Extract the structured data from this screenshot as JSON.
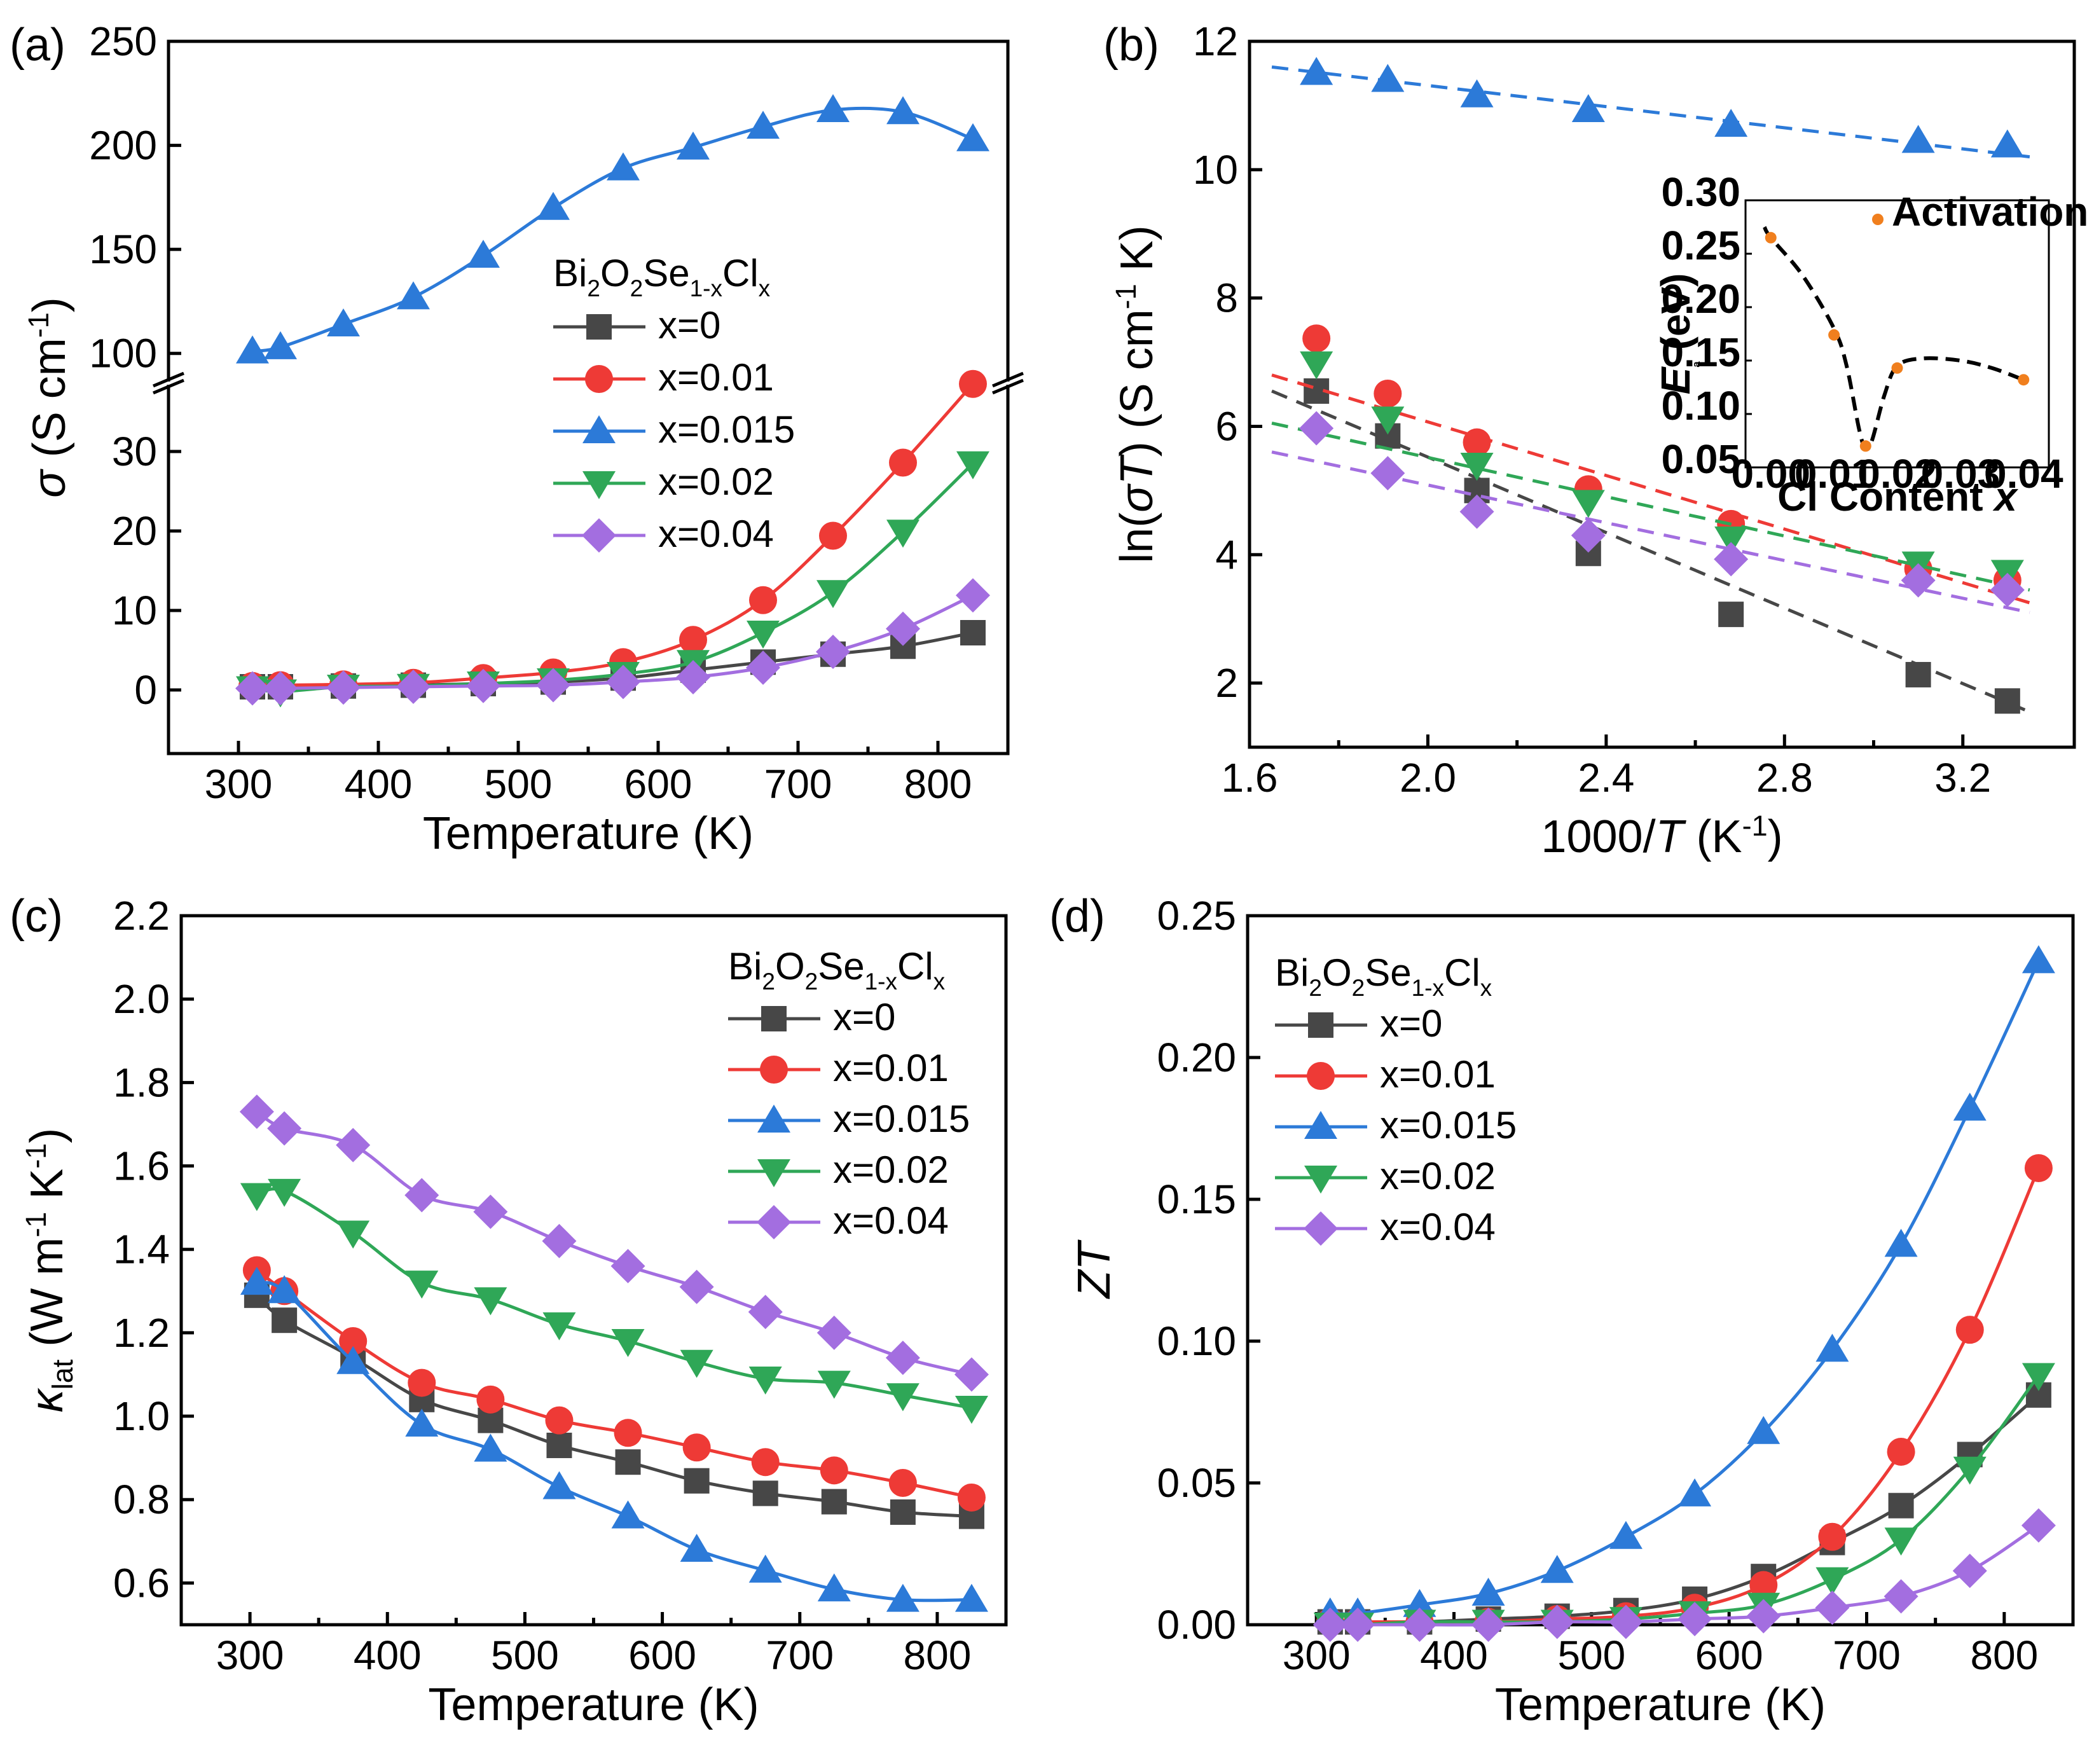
{
  "figure": {
    "series_names": [
      "x=0",
      "x=0.01",
      "x=0.015",
      "x=0.02",
      "x=0.04"
    ],
    "series_colors": [
      "#474747",
      "#ee3a36",
      "#2c7ad8",
      "#2fa757",
      "#a36ee0"
    ],
    "series_markers": [
      "square",
      "circle",
      "triangle-up",
      "triangle-down",
      "diamond"
    ]
  },
  "chart_data": [
    {
      "id": "a",
      "type": "line",
      "panel_label": "(a)",
      "xlabel": "Temperature (K)",
      "ylabel": "σ (S cm⁻¹)",
      "legend_title": "Bi₂O₂Se₁₋ₓClₓ",
      "legend_position": "center",
      "xlim": [
        250,
        850
      ],
      "ylim_lower": [
        -8,
        38
      ],
      "ylim_upper": [
        88,
        250
      ],
      "axis_break": true,
      "xticks": [
        "300",
        "400",
        "500",
        "600",
        "700",
        "800"
      ],
      "yticks_lower": [
        "0",
        "10",
        "20",
        "30"
      ],
      "yticks_upper": [
        "100",
        "150",
        "200",
        "250"
      ],
      "x": [
        310,
        330,
        375,
        425,
        475,
        525,
        575,
        625,
        675,
        725,
        775,
        825
      ],
      "series": [
        {
          "name": "x=0",
          "values": [
            0.4,
            0.4,
            0.5,
            0.6,
            0.8,
            1.0,
            1.5,
            2.5,
            3.5,
            4.5,
            5.5,
            7.2
          ]
        },
        {
          "name": "x=0.01",
          "values": [
            0.5,
            0.6,
            0.7,
            0.9,
            1.5,
            2.2,
            3.5,
            6.3,
            11.3,
            19.4,
            28.6,
            38.5
          ]
        },
        {
          "name": "x=0.015",
          "values": [
            101,
            103,
            114,
            127,
            147,
            170,
            189,
            199,
            209,
            217,
            216,
            203
          ]
        },
        {
          "name": "x=0.02",
          "values": [
            0.2,
            -0.2,
            0.4,
            0.5,
            0.8,
            1.2,
            2.0,
            3.5,
            7.2,
            12.3,
            19.9,
            28.5
          ]
        },
        {
          "name": "x=0.04",
          "values": [
            0.2,
            0.2,
            0.3,
            0.4,
            0.5,
            0.6,
            1.0,
            1.6,
            2.8,
            4.8,
            7.7,
            11.9
          ]
        }
      ]
    },
    {
      "id": "b",
      "type": "scatter",
      "panel_label": "(b)",
      "xlabel": "1000/T (K⁻¹)",
      "ylabel": "ln(σT) (S cm⁻¹ K)",
      "xlim": [
        1.6,
        3.45
      ],
      "ylim": [
        1.0,
        12.0
      ],
      "xticks": [
        "1.6",
        "2.0",
        "2.4",
        "2.8",
        "3.2"
      ],
      "yticks": [
        "2",
        "4",
        "6",
        "8",
        "10",
        "12"
      ],
      "x": [
        1.75,
        1.91,
        2.11,
        2.36,
        2.68,
        3.1,
        3.3
      ],
      "series": [
        {
          "name": "x=0",
          "values": [
            6.55,
            5.85,
            5.0,
            4.02,
            3.07,
            2.13,
            1.72
          ],
          "fit": [
            [
              1.65,
              6.55
            ],
            [
              3.35,
              1.55
            ]
          ]
        },
        {
          "name": "x=0.01",
          "values": [
            7.37,
            6.51,
            5.75,
            5.02,
            4.48,
            3.78,
            3.6
          ],
          "fit": [
            [
              1.65,
              6.8
            ],
            [
              3.35,
              3.25
            ]
          ]
        },
        {
          "name": "x=0.015",
          "values": [
            11.51,
            11.4,
            11.16,
            10.93,
            10.7,
            10.45,
            10.38
          ],
          "fit": [
            [
              1.65,
              11.6
            ],
            [
              3.35,
              10.2
            ]
          ]
        },
        {
          "name": "x=0.02",
          "values": [
            6.98,
            6.12,
            5.4,
            4.82,
            4.25,
            3.86,
            3.73
          ],
          "fit": [
            [
              1.65,
              6.05
            ],
            [
              3.35,
              3.45
            ]
          ]
        },
        {
          "name": "x=0.04",
          "values": [
            5.97,
            5.27,
            4.67,
            4.3,
            3.93,
            3.6,
            3.45
          ],
          "fit": [
            [
              1.65,
              5.6
            ],
            [
              3.35,
              3.1
            ]
          ]
        }
      ],
      "inset": {
        "type": "scatter",
        "xlabel": "Cl Content x",
        "ylabel": "Eₐ (eV)",
        "legend_label": "Activation Energy",
        "xlim": [
          -0.004,
          0.044
        ],
        "ylim": [
          0.05,
          0.3
        ],
        "xticks": [
          "0.00",
          "0.01",
          "0.02",
          "0.03",
          "0.04"
        ],
        "yticks": [
          "0.05",
          "0.10",
          "0.15",
          "0.20",
          "0.25",
          "0.30"
        ],
        "color": "#f07f1e",
        "x": [
          0.0,
          0.01,
          0.015,
          0.02,
          0.04
        ],
        "values": [
          0.265,
          0.174,
          0.07,
          0.143,
          0.132
        ],
        "curve": [
          [
            -0.001,
            0.275
          ],
          [
            0.0,
            0.265
          ],
          [
            0.005,
            0.23
          ],
          [
            0.01,
            0.18
          ],
          [
            0.012,
            0.145
          ],
          [
            0.014,
            0.085
          ],
          [
            0.015,
            0.068
          ],
          [
            0.016,
            0.075
          ],
          [
            0.018,
            0.118
          ],
          [
            0.02,
            0.145
          ],
          [
            0.024,
            0.152
          ],
          [
            0.03,
            0.15
          ],
          [
            0.035,
            0.143
          ],
          [
            0.04,
            0.132
          ]
        ]
      }
    },
    {
      "id": "c",
      "type": "line",
      "panel_label": "(c)",
      "xlabel": "Temperature (K)",
      "ylabel": "κ_lat (W m⁻¹ K⁻¹)",
      "legend_title": "Bi₂O₂Se₁₋ₓClₓ",
      "legend_position": "top-right",
      "xlim": [
        250,
        850
      ],
      "ylim": [
        0.5,
        2.2
      ],
      "xticks": [
        "300",
        "400",
        "500",
        "600",
        "700",
        "800"
      ],
      "yticks": [
        "0.6",
        "0.8",
        "1.0",
        "1.2",
        "1.4",
        "1.6",
        "1.8",
        "2.0",
        "2.2"
      ],
      "x": [
        305,
        325,
        375,
        425,
        475,
        525,
        575,
        625,
        675,
        725,
        775,
        825
      ],
      "series": [
        {
          "name": "x=0",
          "values": [
            1.29,
            1.23,
            1.14,
            1.04,
            0.99,
            0.93,
            0.89,
            0.845,
            0.815,
            0.795,
            0.77,
            0.76
          ]
        },
        {
          "name": "x=0.01",
          "values": [
            1.35,
            1.3,
            1.18,
            1.08,
            1.04,
            0.99,
            0.96,
            0.925,
            0.89,
            0.87,
            0.84,
            0.805
          ]
        },
        {
          "name": "x=0.015",
          "values": [
            1.32,
            1.3,
            1.13,
            0.98,
            0.92,
            0.83,
            0.76,
            0.68,
            0.63,
            0.585,
            0.56,
            0.56
          ]
        },
        {
          "name": "x=0.02",
          "values": [
            1.53,
            1.54,
            1.44,
            1.32,
            1.28,
            1.22,
            1.18,
            1.13,
            1.09,
            1.08,
            1.05,
            1.02
          ]
        },
        {
          "name": "x=0.04",
          "values": [
            1.73,
            1.69,
            1.65,
            1.53,
            1.49,
            1.42,
            1.36,
            1.31,
            1.25,
            1.2,
            1.14,
            1.1
          ]
        }
      ]
    },
    {
      "id": "d",
      "type": "line",
      "panel_label": "(d)",
      "xlabel": "Temperature (K)",
      "ylabel": "ZT",
      "legend_title": "Bi₂O₂Se₁₋ₓClₓ",
      "legend_position": "top-left",
      "xlim": [
        250,
        850
      ],
      "ylim": [
        0.0,
        0.25
      ],
      "xticks": [
        "300",
        "400",
        "500",
        "600",
        "700",
        "800"
      ],
      "yticks": [
        "0.00",
        "0.05",
        "0.10",
        "0.15",
        "0.20",
        "0.25"
      ],
      "x": [
        310,
        330,
        375,
        425,
        475,
        525,
        575,
        625,
        675,
        725,
        775,
        825
      ],
      "series": [
        {
          "name": "x=0",
          "values": [
            0.001,
            0.001,
            0.001,
            0.002,
            0.003,
            0.005,
            0.009,
            0.017,
            0.029,
            0.042,
            0.06,
            0.081
          ]
        },
        {
          "name": "x=0.01",
          "values": [
            0.001,
            0.001,
            0.001,
            0.001,
            0.002,
            0.003,
            0.006,
            0.014,
            0.031,
            0.061,
            0.104,
            0.161
          ]
        },
        {
          "name": "x=0.015",
          "values": [
            0.004,
            0.004,
            0.007,
            0.011,
            0.019,
            0.031,
            0.046,
            0.068,
            0.097,
            0.134,
            0.182,
            0.234
          ]
        },
        {
          "name": "x=0.02",
          "values": [
            0.0,
            0.0,
            0.001,
            0.001,
            0.001,
            0.002,
            0.004,
            0.007,
            0.016,
            0.03,
            0.055,
            0.088
          ]
        },
        {
          "name": "x=0.04",
          "values": [
            0.0,
            0.0,
            0.0,
            0.0,
            0.001,
            0.001,
            0.002,
            0.003,
            0.006,
            0.01,
            0.019,
            0.035
          ]
        }
      ]
    }
  ]
}
